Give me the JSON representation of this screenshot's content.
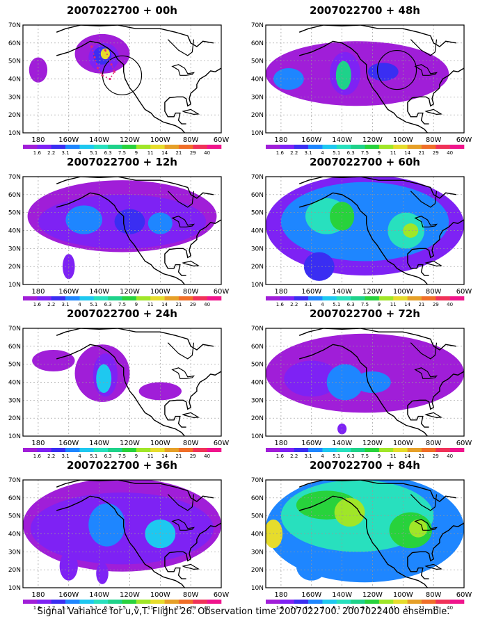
{
  "panels": [
    {
      "title": "2007022700 + 00h",
      "col": 0,
      "row": 0,
      "level": 0,
      "circle": true,
      "dotted": true
    },
    {
      "title": "2007022700 + 48h",
      "col": 1,
      "row": 0,
      "level": 4,
      "circle": true,
      "dotted": false
    },
    {
      "title": "2007022700 + 12h",
      "col": 0,
      "row": 1,
      "level": 1,
      "circle": false,
      "dotted": false
    },
    {
      "title": "2007022700 + 60h",
      "col": 1,
      "row": 1,
      "level": 5,
      "circle": false,
      "dotted": false
    },
    {
      "title": "2007022700 + 24h",
      "col": 0,
      "row": 2,
      "level": 2,
      "circle": false,
      "dotted": false
    },
    {
      "title": "2007022700 + 72h",
      "col": 1,
      "row": 2,
      "level": 6,
      "circle": false,
      "dotted": false
    },
    {
      "title": "2007022700 + 36h",
      "col": 0,
      "row": 3,
      "level": 3,
      "circle": false,
      "dotted": false
    },
    {
      "title": "2007022700 + 84h",
      "col": 1,
      "row": 3,
      "level": 7,
      "circle": false,
      "dotted": false
    }
  ],
  "axes": {
    "lat_labels": [
      "10N",
      "20N",
      "30N",
      "40N",
      "50N",
      "60N",
      "70N"
    ],
    "lon_labels": [
      "180",
      "160W",
      "140W",
      "120W",
      "100W",
      "80W",
      "60W"
    ]
  },
  "colorbar": {
    "labels": [
      "1.6",
      "2.2",
      "3.1",
      "4",
      "5.1",
      "6.3",
      "7.5",
      "9",
      "11",
      "14",
      "21",
      "29",
      "40"
    ],
    "colors": [
      "#a01ed8",
      "#7e22f4",
      "#3a2ef2",
      "#1e86ff",
      "#1ec8f0",
      "#28e0be",
      "#1ed28a",
      "#28d23c",
      "#a0e628",
      "#e6dc2c",
      "#e6a028",
      "#f06e28",
      "#f03258",
      "#f0148c"
    ]
  },
  "footer": "Signal Variance for u,v,T. Flight 26. Observation time 2007022700. 2007022400 ensemble."
}
